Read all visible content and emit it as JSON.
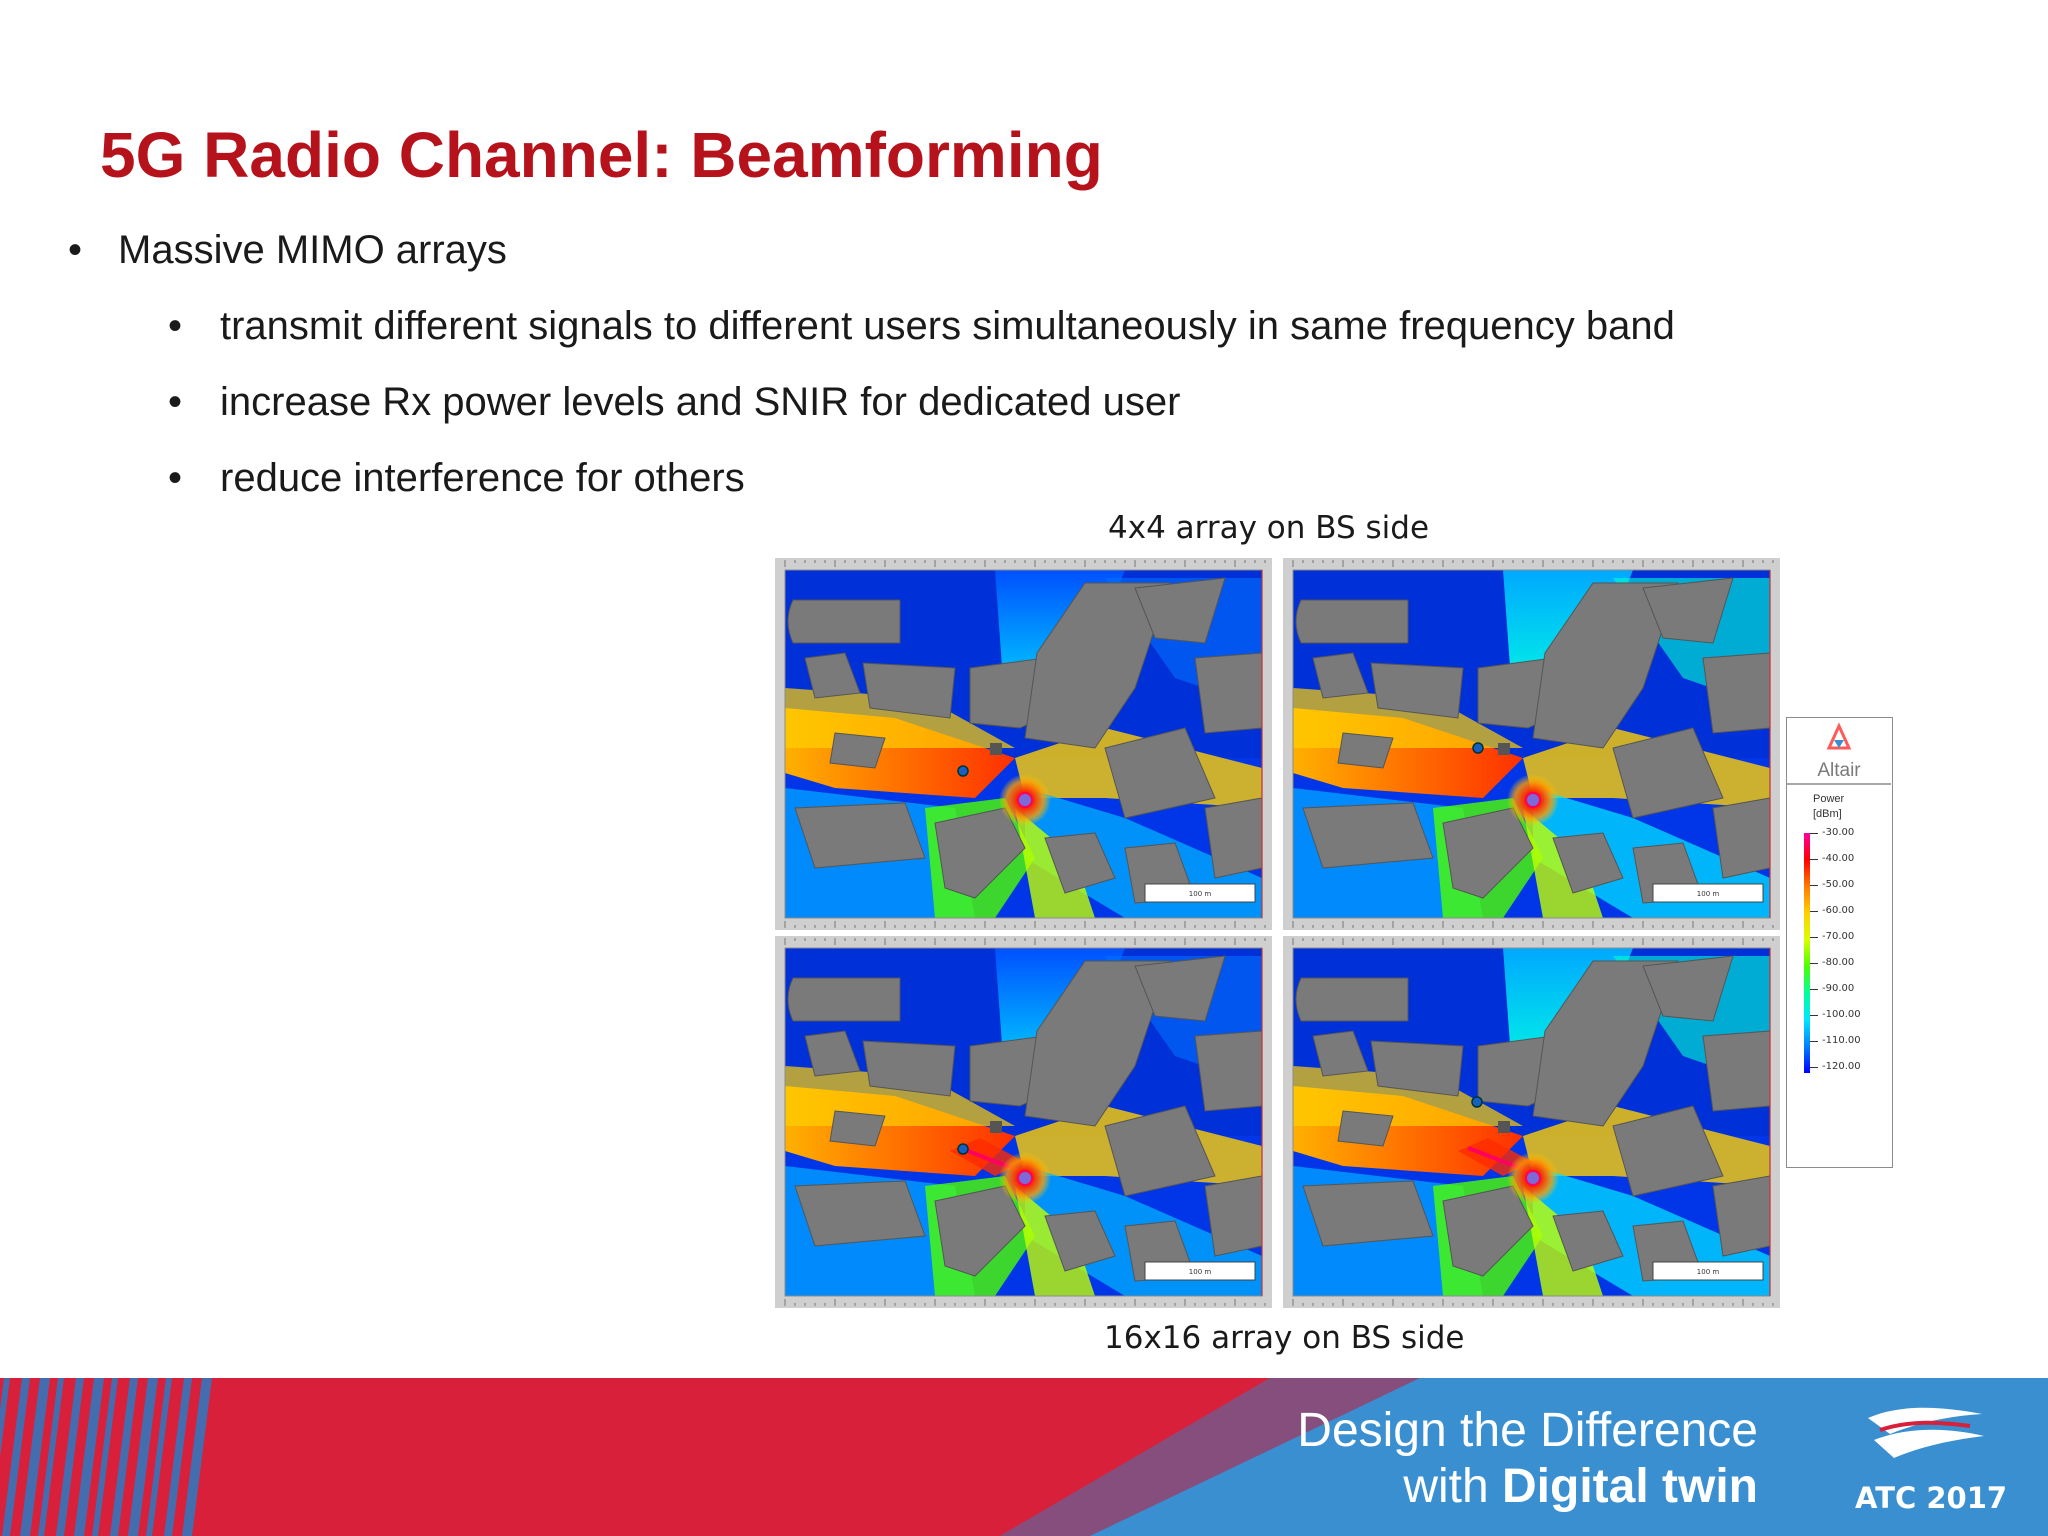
{
  "slide": {
    "title": "5G Radio Channel: Beamforming",
    "bullets": [
      {
        "level": 1,
        "text": "Massive MIMO arrays"
      },
      {
        "level": 2,
        "text": "transmit different signals to different users simultaneously in same frequency band"
      },
      {
        "level": 2,
        "text": "increase Rx power levels and SNIR for dedicated user"
      },
      {
        "level": 2,
        "text": "reduce interference for others"
      }
    ],
    "bullet_glyph": "•"
  },
  "figure": {
    "caption_top": "4x4 array on BS side",
    "caption_bottom": "16x16 array on BS side",
    "panels": [
      {
        "scale_label": "100 m"
      },
      {
        "scale_label": "100 m"
      },
      {
        "scale_label": "100 m"
      },
      {
        "scale_label": "100 m"
      }
    ],
    "legend": {
      "brand": "Altair",
      "title": "Power",
      "unit": "[dBm]",
      "ticks": [
        "-30.00",
        "-40.00",
        "-50.00",
        "-60.00",
        "-70.00",
        "-80.00",
        "-90.00",
        "-100.00",
        "-110.00",
        "-120.00"
      ],
      "colors": [
        "#ff00a0",
        "#ff0000",
        "#ff7a00",
        "#ffd000",
        "#d9ff00",
        "#4bff00",
        "#00ff9a",
        "#00e5ff",
        "#0080ff",
        "#0000ff"
      ]
    }
  },
  "footer": {
    "slogan_line1": "Design the Difference",
    "slogan_line2_prefix": "with ",
    "slogan_line2_bold": "Digital twin",
    "event": "ATC 2017",
    "colors": {
      "red": "#d8203a",
      "blue": "#3a8fd0"
    }
  }
}
